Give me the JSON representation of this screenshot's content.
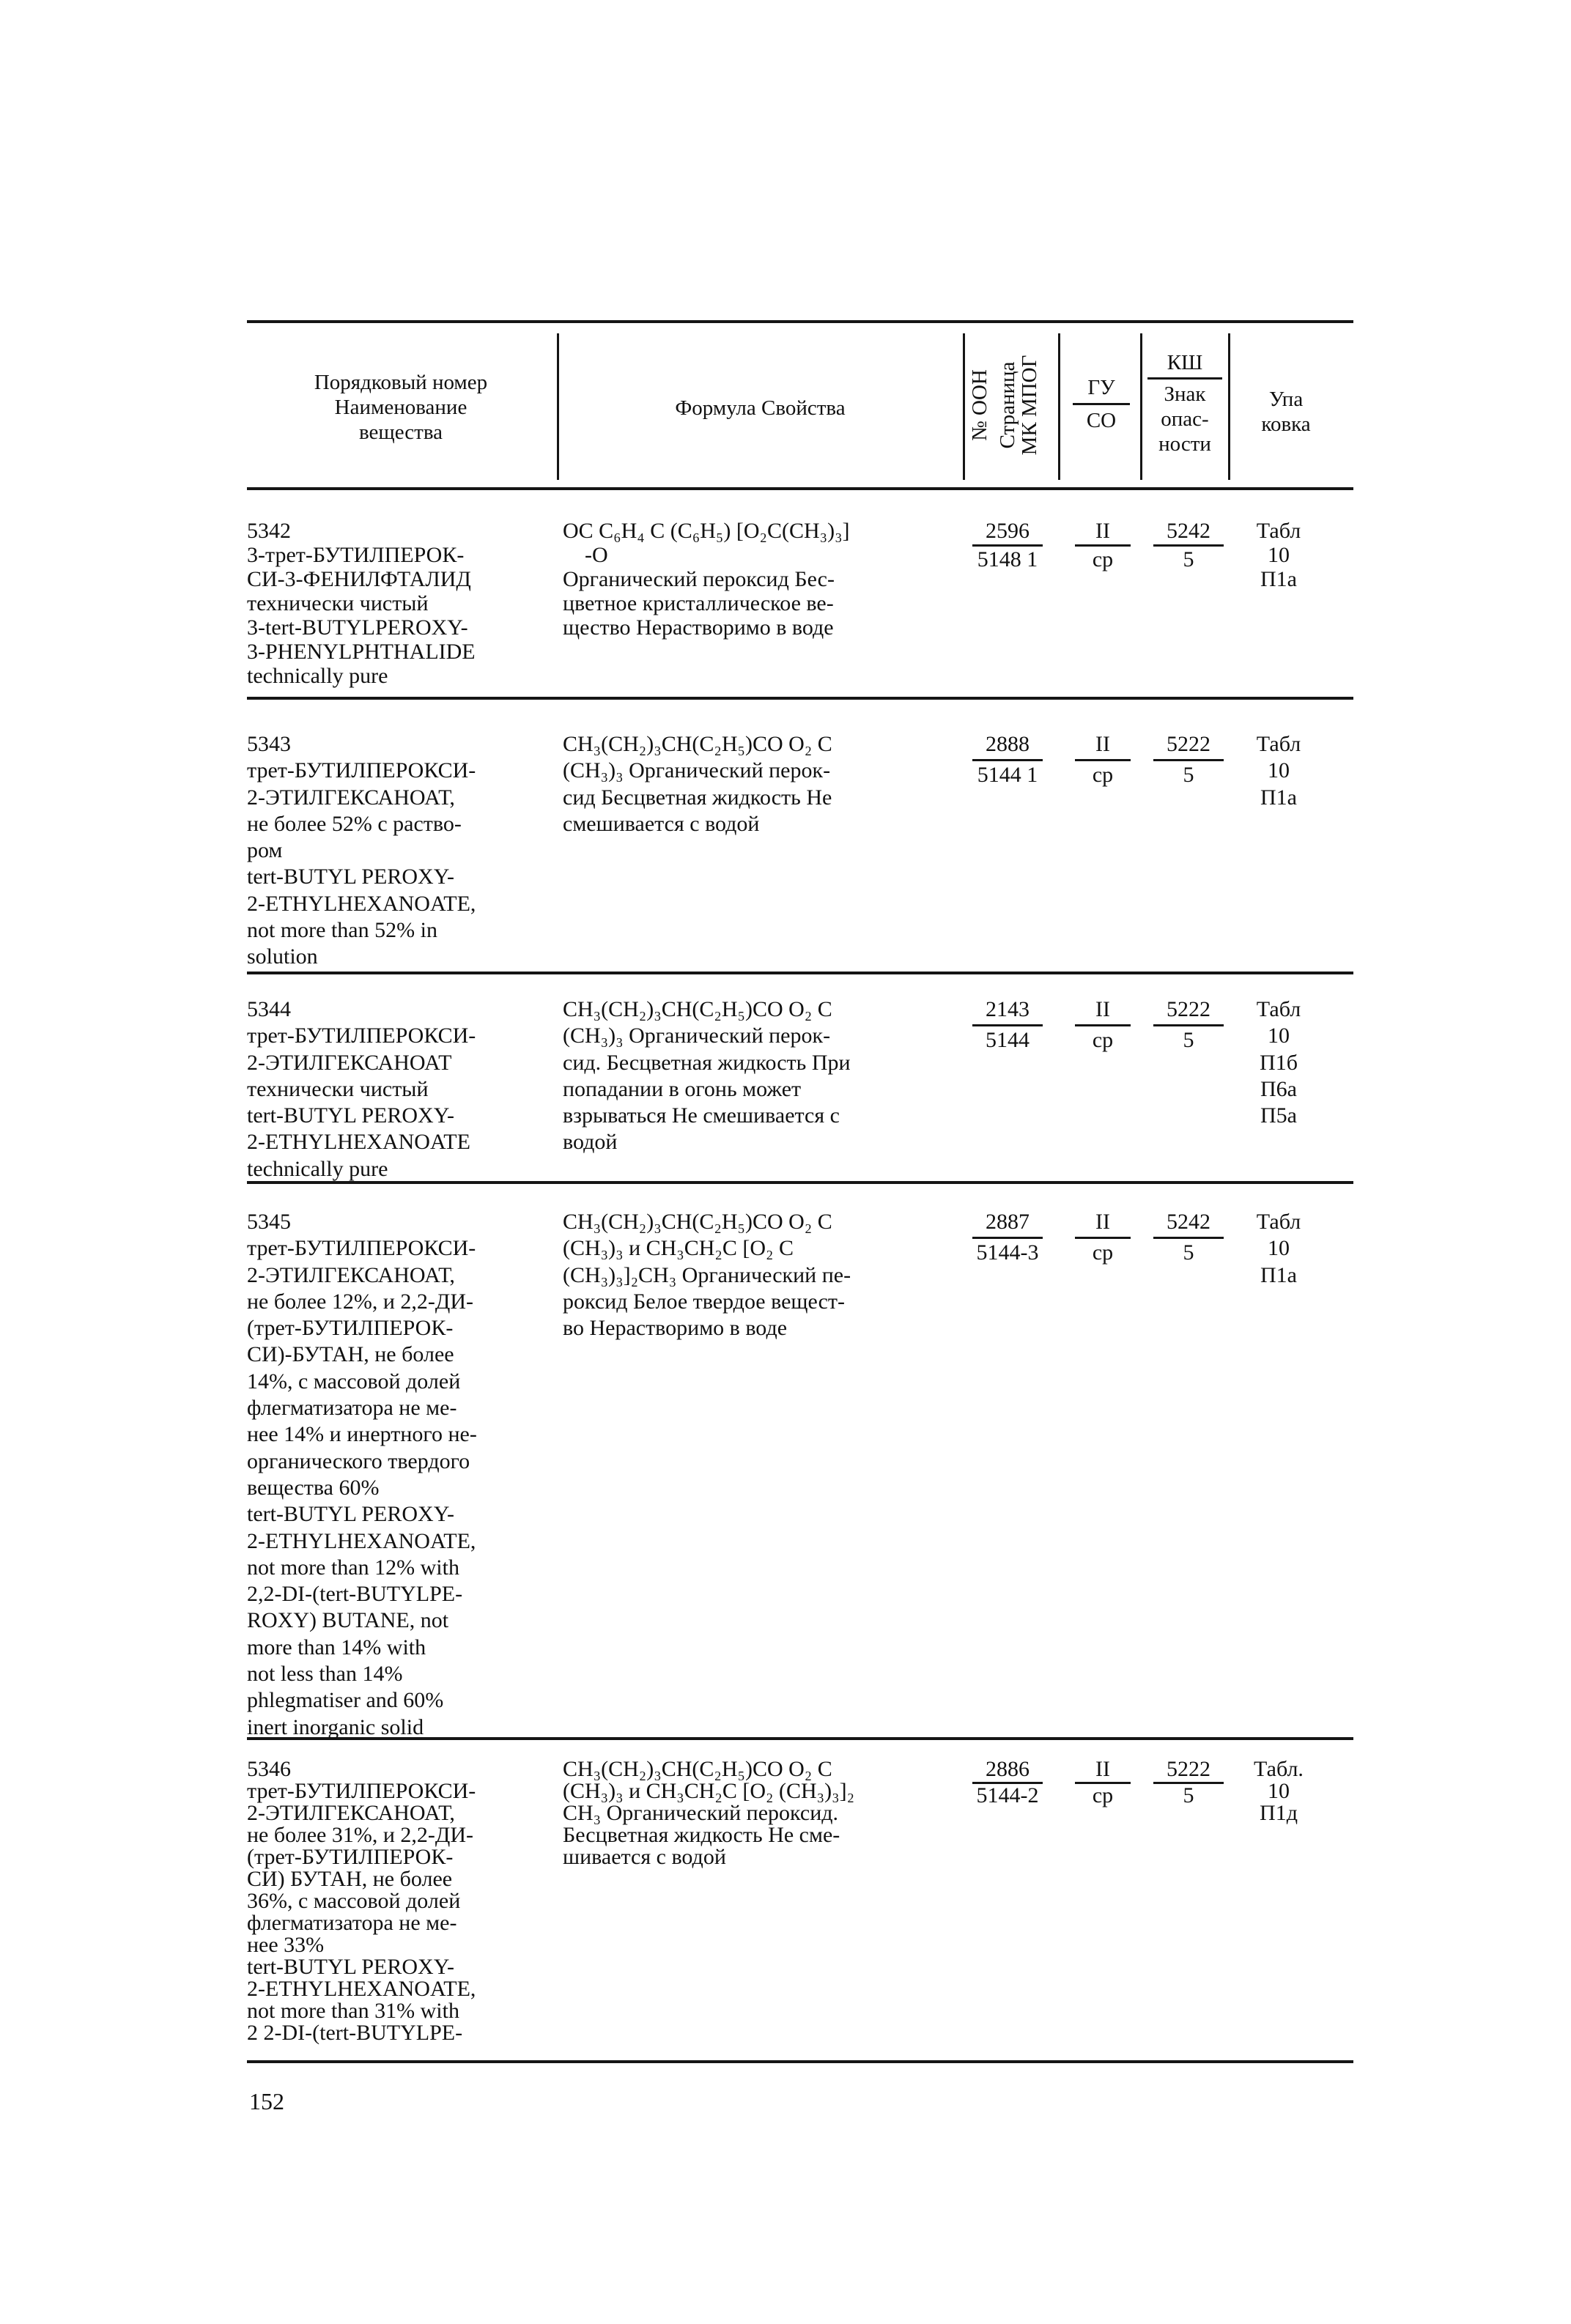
{
  "header": {
    "name_col": [
      "Порядковый номер",
      "Наименование",
      "вещества"
    ],
    "formula_col": "Формула Свойства",
    "un_col": "№ ООН",
    "page_col": [
      "Страница",
      "МК МПОГ"
    ],
    "gu": "ГУ",
    "co": "СО",
    "ksh": "КШ",
    "sign": [
      "Знак",
      "опас-",
      "ности"
    ],
    "pack": [
      "Упа",
      "ковка"
    ]
  },
  "rows": [
    {
      "number": "5342",
      "name": [
        "3-трет-БУТИЛПЕРОК-",
        "СИ-3-ФЕНИЛФТАЛИД",
        "технически чистый",
        "3-tert-BUTYLPEROXY-",
        "3-PHENYLPHTHALIDE",
        "technically pure"
      ],
      "formula": [
        "OC C₆H₄ C (C₆H₅) [O₂C(CH₃)₃]",
        "    -O",
        "Органический пероксид Бес-",
        "цветное кристаллическое ве-",
        "щество Нерастворимо в воде"
      ],
      "un": "2596",
      "page": "5148 1",
      "gu": "II",
      "co": "ср",
      "ksh": "5242",
      "sign": "5",
      "pack": [
        "Табл",
        "10",
        "П1а"
      ]
    },
    {
      "number": "5343",
      "name": [
        "трет-БУТИЛПЕРОКСИ-",
        "2-ЭТИЛГЕКСАНОАТ,",
        "не более 52% с раство-",
        "ром",
        "tert-BUTYL PEROXY-",
        "2-ETHYLHEXANOATE,",
        "not more than 52% in",
        "solution"
      ],
      "formula": [
        "CH₃(CH₂)₃CH(C₂H₅)CO O₂ C",
        "(CH₃)₃ Органический перок-",
        "сид Бесцветная жидкость Не",
        "смешивается с водой"
      ],
      "un": "2888",
      "page": "5144 1",
      "gu": "II",
      "co": "ср",
      "ksh": "5222",
      "sign": "5",
      "pack": [
        "Табл",
        "10",
        "П1а"
      ]
    },
    {
      "number": "5344",
      "name": [
        "трет-БУТИЛПЕРОКСИ-",
        "2-ЭТИЛГЕКСАНОАТ",
        "технически чистый",
        "tert-BUTYL PEROXY-",
        "2-ETHYLHEXANOATE",
        "technically pure"
      ],
      "formula": [
        "CH₃(CH₂)₃CH(C₂H₅)CO O₂ C",
        "(CH₃)₃ Органический перок-",
        "сид. Бесцветная жидкость При",
        "попадании в огонь может",
        "взрываться Не смешивается с",
        "водой"
      ],
      "un": "2143",
      "page": "5144",
      "gu": "II",
      "co": "ср",
      "ksh": "5222",
      "sign": "5",
      "pack": [
        "Табл",
        "10",
        "П1б",
        "П6а",
        "П5а"
      ]
    },
    {
      "number": "5345",
      "name": [
        "трет-БУТИЛПЕРОКСИ-",
        "2-ЭТИЛГЕКСАНОАТ,",
        "не более 12%, и 2,2-ДИ-",
        "(трет-БУТИЛПЕРОК-",
        "СИ)-БУТАН, не более",
        "14%, с массовой долей",
        "флегматизатора не ме-",
        "нее 14% и инертного не-",
        "органического твердого",
        "вещества 60%",
        "tert-BUTYL PEROXY-",
        "2-ETHYLHEXANOATE,",
        "not more than 12% with",
        "2,2-DI-(tert-BUTYLPE-",
        "ROXY) BUTANE, not",
        "more than 14% with",
        "not less than 14%",
        "phlegmatiser and 60%",
        "inert inorganic solid"
      ],
      "formula": [
        "CH₃(CH₂)₃CH(C₂H₅)CO O₂ C",
        "(CH₃)₃ и CH₃CH₂C [O₂ C",
        "(CH₃)₃]₂CH₃ Органический пе-",
        "роксид Белое твердое вещест-",
        "во Нерастворимо в воде"
      ],
      "un": "2887",
      "page": "5144-3",
      "gu": "II",
      "co": "ср",
      "ksh": "5242",
      "sign": "5",
      "pack": [
        "Табл",
        "10",
        "П1а"
      ]
    },
    {
      "number": "5346",
      "name": [
        "трет-БУТИЛПЕРОКСИ-",
        "2-ЭТИЛГЕКСАНОАТ,",
        "не более 31%, и 2,2-ДИ-",
        "(трет-БУТИЛПЕРОК-",
        "СИ) БУТАН, не более",
        "36%, с массовой долей",
        "флегматизатора не ме-",
        "нее 33%",
        "tert-BUTYL PEROXY-",
        "2-ETHYLHEXANOATE,",
        "not more than 31% with",
        "2 2-DI-(tert-BUTYLPE-"
      ],
      "formula": [
        "CH₃(CH₂)₃CH(C₂H₅)CO O₂ C",
        "(CH₃)₃ и CH₃CH₂C [O₂ (CH₃)₃]₂",
        "CH₃ Органический пероксид.",
        "Бесцветная жидкость Не сме-",
        "шивается с водой"
      ],
      "un": "2886",
      "page": "5144-2",
      "gu": "II",
      "co": "ср",
      "ksh": "5222",
      "sign": "5",
      "pack": [
        "Табл.",
        "10",
        "П1д"
      ]
    }
  ],
  "page_number": "152"
}
